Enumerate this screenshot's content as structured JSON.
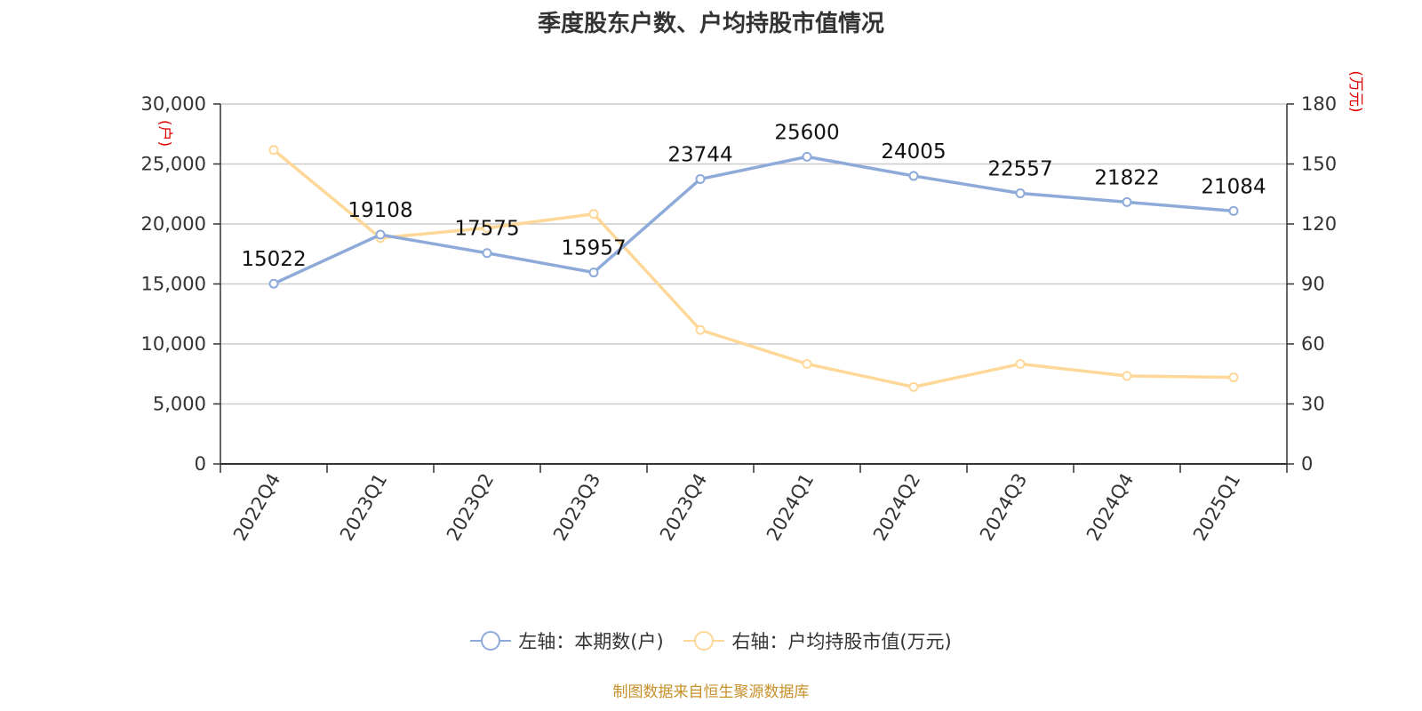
{
  "title": "季度股东户数、户均持股市值情况",
  "source": "制图数据来自恒生聚源数据库",
  "chart_data": {
    "type": "line",
    "categories": [
      "2022Q4",
      "2023Q1",
      "2023Q2",
      "2023Q3",
      "2023Q4",
      "2024Q1",
      "2024Q2",
      "2024Q3",
      "2024Q4",
      "2025Q1"
    ],
    "left_axis": {
      "unit": "(户)",
      "range": [
        0,
        30000
      ],
      "ticks": [
        "0",
        "5,000",
        "10,000",
        "15,000",
        "20,000",
        "25,000",
        "30,000"
      ]
    },
    "right_axis": {
      "unit": "(万元)",
      "range": [
        0,
        180
      ],
      "ticks": [
        "0",
        "30",
        "60",
        "90",
        "120",
        "150",
        "180"
      ]
    },
    "grid": true,
    "legend_position": "bottom",
    "series": [
      {
        "name": "左轴：本期数(户)",
        "axis": "left",
        "color": "#8eaad9",
        "values": [
          15022,
          19108,
          17575,
          15957,
          23744,
          25600,
          24005,
          22557,
          21822,
          21084
        ],
        "labels": [
          "15022",
          "19108",
          "17575",
          "15957",
          "23744",
          "25600",
          "24005",
          "22557",
          "21822",
          "21084"
        ]
      },
      {
        "name": "右轴：户均持股市值(万元)",
        "axis": "right",
        "color": "#fdd899",
        "values": [
          157,
          113,
          118,
          125,
          67,
          50,
          38.5,
          50,
          44,
          43.3
        ]
      }
    ]
  }
}
